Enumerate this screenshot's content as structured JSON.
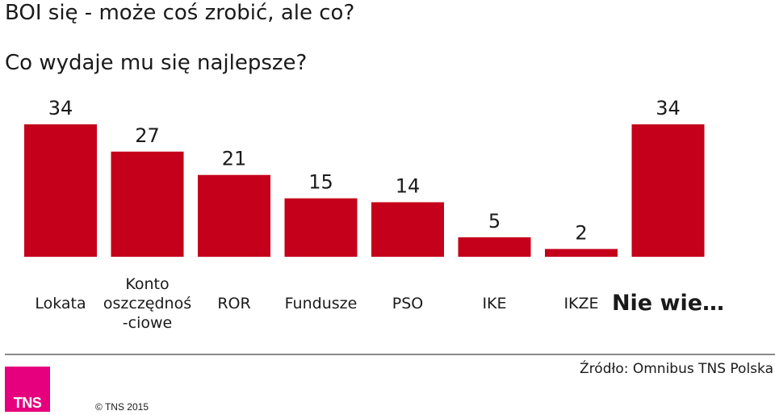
{
  "title_line1": "BOI się - może coś zrobić, ale co?",
  "title_line2": "Co wydaje mu się najlepsze?",
  "chart_data": {
    "type": "bar",
    "categories": [
      [
        "Lokata"
      ],
      [
        "Konto",
        "oszczędnoś",
        "-ciowe"
      ],
      [
        "ROR"
      ],
      [
        "Fundusze"
      ],
      [
        "PSO"
      ],
      [
        "IKE"
      ],
      [
        "IKZE"
      ],
      [
        "Nie wie…"
      ]
    ],
    "values": [
      34,
      27,
      21,
      15,
      14,
      5,
      2,
      34
    ],
    "value_labels": [
      "34",
      "27",
      "21",
      "15",
      "14",
      "5",
      "2",
      "34"
    ],
    "ylim": [
      0,
      34
    ],
    "grid": false,
    "bar_color": "#c4001a"
  },
  "footer": {
    "source": "Źródło: Omnibus TNS Polska",
    "copyright": "© TNS 2015",
    "logo_text": "TNS",
    "logo_color": "#e6007e"
  }
}
